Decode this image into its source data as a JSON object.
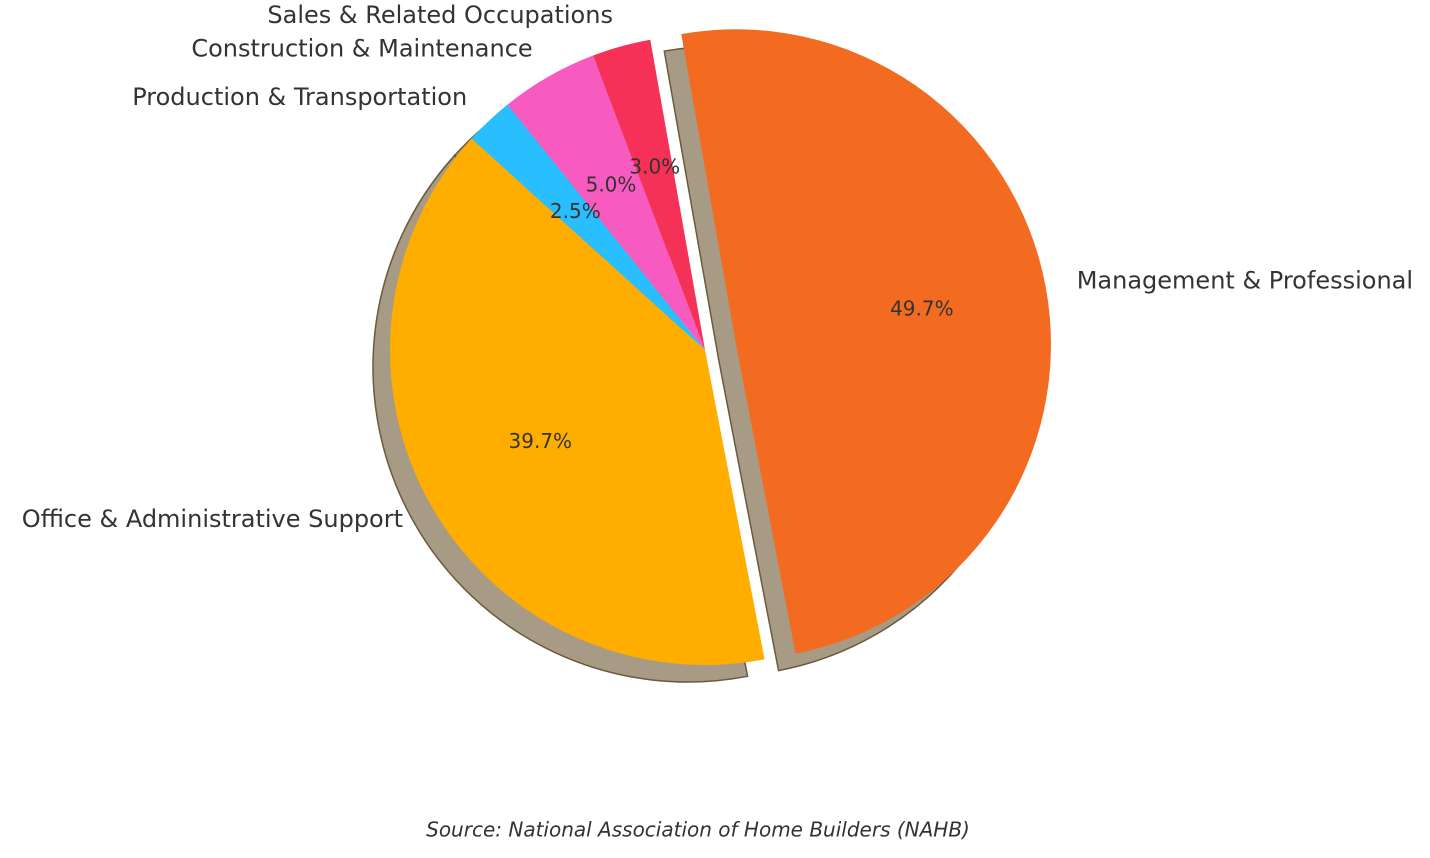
{
  "chart_data": {
    "type": "pie",
    "categories": [
      "Management & Professional",
      "Office & Administrative Support",
      "Production & Transportation",
      "Construction & Maintenance",
      "Sales & Related Occupations"
    ],
    "values": [
      49.7,
      39.7,
      2.5,
      5.0,
      3.0
    ],
    "value_labels": [
      "49.7%",
      "39.7%",
      "2.5%",
      "5.0%",
      "3.0%"
    ],
    "colors": [
      "#f26b21",
      "#ffae00",
      "#29bfff",
      "#f75bbf",
      "#f53157"
    ],
    "explode": [
      0.1,
      0,
      0,
      0,
      0
    ],
    "shadow": true,
    "source": "Source: National Association of Home Builders (NAHB)"
  }
}
